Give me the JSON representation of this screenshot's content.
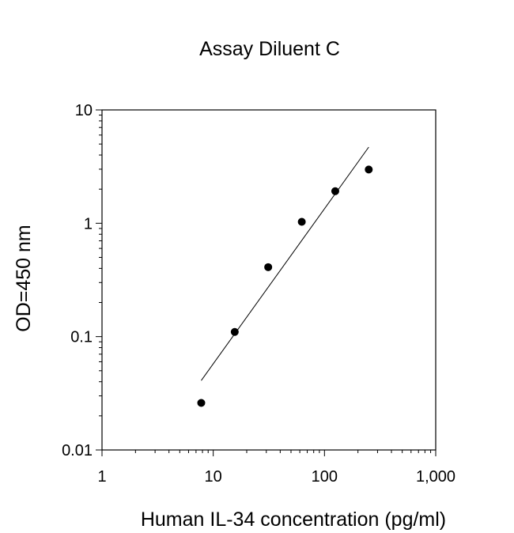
{
  "chart_data": {
    "type": "scatter",
    "title": "Assay Diluent C",
    "xlabel": "Human IL-34 concentration (pg/ml)",
    "ylabel": "OD=450 nm",
    "x_scale": "log",
    "y_scale": "log",
    "xlim": [
      1,
      1000
    ],
    "ylim": [
      0.01,
      10
    ],
    "x_ticks": [
      1,
      10,
      100,
      1000
    ],
    "x_tick_labels": [
      "1",
      "10",
      "100",
      "1,000"
    ],
    "y_ticks": [
      0.01,
      0.1,
      1,
      10
    ],
    "y_tick_labels": [
      "0.01",
      "0.1",
      "1",
      "10"
    ],
    "grid": false,
    "legend": "none",
    "series": [
      {
        "x": [
          7.8,
          15.6,
          31.2,
          62.5,
          125,
          250
        ],
        "y": [
          0.026,
          0.11,
          0.41,
          1.03,
          1.92,
          2.98
        ]
      }
    ],
    "fit_line": {
      "x": [
        7.8,
        250
      ],
      "y": [
        0.041,
        4.7
      ]
    },
    "colors": {
      "points": "#000000",
      "line": "#000000",
      "axes": "#000000"
    }
  }
}
